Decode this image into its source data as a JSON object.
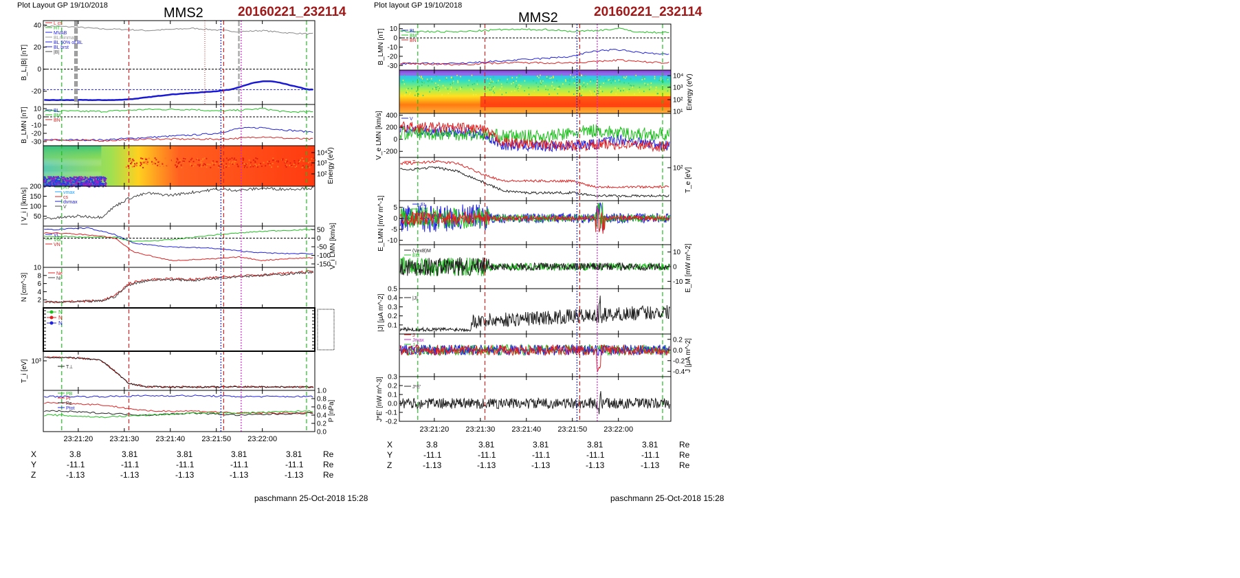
{
  "left": {
    "header": {
      "layout": "Plot Layout GP 19/10/2018",
      "title": "MMS2",
      "event": "20160221_232114"
    },
    "footer": "paschmann 25-Oct-2018 15:28",
    "time_ticks": [
      "23:21:20",
      "23:21:30",
      "23:21:40",
      "23:21:50",
      "23:22:00"
    ],
    "coords": {
      "rows": [
        {
          "label": "X",
          "values": [
            "3.8",
            "3.81",
            "3.81",
            "3.81",
            "3.81"
          ],
          "unit": "Re"
        },
        {
          "label": "Y",
          "values": [
            "-11.1",
            "-11.1",
            "-11.1",
            "-11.1",
            "-11.1"
          ],
          "unit": "Re"
        },
        {
          "label": "Z",
          "values": [
            "-1.13",
            "-1.13",
            "-1.13",
            "-1.13",
            "-1.13"
          ],
          "unit": "Re"
        }
      ]
    }
  },
  "right": {
    "header": {
      "layout": "Plot layout GP 19/10/2018",
      "title": "MMS2",
      "event": "20160221_232114"
    },
    "footer": "paschmann 25-Oct-2018 15:28",
    "time_ticks": [
      "23:21:20",
      "23:21:30",
      "23:21:40",
      "23:21:50",
      "23:22:00"
    ],
    "coords": {
      "rows": [
        {
          "label": "X",
          "values": [
            "3.8",
            "3.81",
            "3.81",
            "3.81",
            "3.81"
          ],
          "unit": "Re"
        },
        {
          "label": "Y",
          "values": [
            "-11.1",
            "-11.1",
            "-11.1",
            "-11.1",
            "-11.1"
          ],
          "unit": "Re"
        },
        {
          "label": "Z",
          "values": [
            "-1.13",
            "-1.13",
            "-1.13",
            "-1.13",
            "-1.13"
          ],
          "unit": "Re"
        }
      ]
    }
  },
  "colors": {
    "red": "#e02020",
    "green": "#20c020",
    "blue": "#2020e0",
    "magenta": "#d020d0",
    "gray": "#888888",
    "black": "#000000",
    "event": "#a01818"
  },
  "chart_data": [
    {
      "id": "left-1",
      "type": "line",
      "ylabel": "B_L,|B| [nT]",
      "ylim": [
        -32,
        44
      ],
      "yticks": [
        -20,
        0,
        20,
        40
      ],
      "legend": [
        "L cs",
        "HT",
        "MVAB",
        "BLminmax",
        "BL 50% of BL",
        "BL brst",
        "|B|"
      ],
      "series": [
        {
          "name": "|B|",
          "color": "#888888",
          "x": [
            15,
            20,
            25,
            30,
            35,
            40,
            45,
            50,
            55,
            60,
            65,
            70
          ],
          "y": [
            39,
            38,
            36.5,
            36,
            35,
            36,
            37,
            35.5,
            34,
            35,
            33,
            32
          ]
        },
        {
          "name": "BL brst",
          "color": "#1a1ad6",
          "x": [
            15,
            20,
            25,
            28,
            32,
            36,
            40,
            45,
            50,
            53,
            56,
            58,
            60,
            62,
            64,
            66,
            68,
            70
          ],
          "y": [
            -28,
            -28,
            -28,
            -28,
            -27,
            -25,
            -23,
            -21.5,
            -20,
            -18.5,
            -15,
            -12.5,
            -11,
            -11,
            -12.5,
            -14.5,
            -16.5,
            -18.5
          ]
        }
      ]
    },
    {
      "id": "left-2",
      "type": "line",
      "ylabel": "B_LMN [nT]",
      "ylim": [
        -35,
        15
      ],
      "yticks": [
        -30,
        -20,
        -10,
        0,
        10
      ],
      "legend": [
        "BL",
        "BM",
        "BN"
      ],
      "series": [
        {
          "name": "BL",
          "color": "#2020e0",
          "x": [
            15,
            25,
            35,
            45,
            50,
            55,
            60,
            65,
            70
          ],
          "y": [
            -28,
            -28,
            -25,
            -22,
            -20,
            -14,
            -13,
            -16,
            -18
          ]
        },
        {
          "name": "BM",
          "color": "#20c020",
          "x": [
            15,
            25,
            35,
            45,
            50,
            55,
            60,
            65,
            70
          ],
          "y": [
            7,
            6.5,
            9,
            9,
            7,
            8,
            10,
            6,
            6
          ]
        },
        {
          "name": "BN",
          "color": "#e02020",
          "x": [
            15,
            25,
            35,
            45,
            50,
            55,
            60,
            65,
            70
          ],
          "y": [
            -28,
            -29,
            -27,
            -27,
            -27,
            -26,
            -24,
            -26,
            -27
          ]
        }
      ]
    },
    {
      "id": "left-3",
      "type": "heatmap",
      "ylabel": "Energy (eV)",
      "ylim_exp": [
        1,
        4.4
      ],
      "yticks": [
        "10^2",
        "10^3",
        "10^4"
      ]
    },
    {
      "id": "left-4",
      "type": "line",
      "ylabel": "| V_i | [km/s]",
      "ylim": [
        0,
        200
      ],
      "yticks": [
        50,
        100,
        150,
        200
      ],
      "legend": [
        "HT",
        "vmax",
        "cs",
        "dvmax",
        "V"
      ],
      "series": [
        {
          "name": "V",
          "color": "#444444",
          "x": [
            15,
            20,
            25,
            28,
            31,
            35,
            40,
            45,
            50,
            55,
            60,
            65,
            70
          ],
          "y": [
            40,
            50,
            45,
            100,
            140,
            165,
            155,
            170,
            185,
            180,
            190,
            185,
            190
          ]
        }
      ]
    },
    {
      "id": "left-5",
      "type": "line",
      "ylabel": "V_i LMN [km/s]",
      "ylim": [
        -170,
        70
      ],
      "yticks": [
        50,
        0,
        -50,
        -100,
        -150
      ],
      "legend": [
        "VL",
        "VM",
        "VN"
      ],
      "series": [
        {
          "name": "VL",
          "color": "#2020e0",
          "x": [
            15,
            22,
            28,
            32,
            40,
            50,
            55,
            60,
            65,
            70
          ],
          "y": [
            50,
            60,
            20,
            -30,
            -50,
            -60,
            -75,
            -85,
            -90,
            -90
          ]
        },
        {
          "name": "VM",
          "color": "#20c020",
          "x": [
            15,
            22,
            28,
            32,
            40,
            50,
            55,
            60,
            65,
            70
          ],
          "y": [
            10,
            5,
            5,
            -20,
            -10,
            20,
            30,
            40,
            45,
            50
          ]
        },
        {
          "name": "VN",
          "color": "#e02020",
          "x": [
            15,
            22,
            28,
            32,
            40,
            50,
            55,
            60,
            65,
            70
          ],
          "y": [
            30,
            20,
            0,
            -80,
            -130,
            -120,
            -110,
            -130,
            -120,
            -115
          ]
        }
      ]
    },
    {
      "id": "left-6",
      "type": "line",
      "ylabel": "N [cm^-3]",
      "ylim": [
        0,
        10
      ],
      "yticks": [
        2,
        4,
        6,
        8,
        10
      ],
      "legend": [
        "Ne",
        "Ni"
      ],
      "series": [
        {
          "name": "Ne",
          "color": "#e02020",
          "x": [
            15,
            20,
            25,
            28,
            31,
            35,
            40,
            45,
            50,
            55,
            60,
            65,
            70
          ],
          "y": [
            1.5,
            1.6,
            1.8,
            3,
            6,
            7,
            7.2,
            7,
            7.5,
            8,
            8.2,
            8.5,
            9
          ]
        },
        {
          "name": "Ni",
          "color": "#444444",
          "x": [
            15,
            20,
            25,
            28,
            31,
            35,
            40,
            45,
            50,
            55,
            60,
            65,
            70
          ],
          "y": [
            1.4,
            1.5,
            1.7,
            2.8,
            5.7,
            6.8,
            7,
            6.8,
            7.3,
            7.8,
            8,
            8.3,
            8.8
          ]
        }
      ]
    },
    {
      "id": "left-7",
      "type": "line",
      "ylabel": "",
      "legend": [
        "N",
        "N",
        "N"
      ]
    },
    {
      "id": "left-8",
      "type": "line",
      "ylabel": "T_i [eV]",
      "yticks": [
        "10^3"
      ],
      "legend": [
        "T⊥"
      ],
      "series": [
        {
          "name": "T⊥",
          "color": "#222222",
          "x": [
            15,
            20,
            25,
            28,
            31,
            35,
            45,
            55,
            70
          ],
          "y": [
            1.0,
            0.98,
            0.9,
            0.55,
            0.15,
            0.05,
            0.04,
            0.05,
            0.04
          ]
        }
      ]
    },
    {
      "id": "left-9",
      "type": "line",
      "ylabel": "P [nPa]",
      "ylim": [
        0,
        1.0
      ],
      "yticks": [
        0.0,
        0.2,
        0.4,
        0.6,
        0.8,
        1.0
      ],
      "legend": [
        "PB",
        "Pi",
        "Pe",
        "Ptot"
      ],
      "series": [
        {
          "name": "PB",
          "color": "#2020e0",
          "x": [
            15,
            25,
            35,
            45,
            55,
            70
          ],
          "y": [
            0.85,
            0.85,
            0.87,
            0.87,
            0.85,
            0.85
          ]
        },
        {
          "name": "Pi",
          "color": "#e02020",
          "x": [
            15,
            25,
            35,
            45,
            55,
            70
          ],
          "y": [
            0.7,
            0.65,
            0.5,
            0.5,
            0.45,
            0.45
          ]
        },
        {
          "name": "Pe",
          "color": "#222222",
          "x": [
            15,
            25,
            35,
            45,
            55,
            70
          ],
          "y": [
            0.5,
            0.45,
            0.4,
            0.45,
            0.4,
            0.45
          ]
        },
        {
          "name": "Ptot",
          "color": "#20c020",
          "x": [
            15,
            25,
            35,
            45,
            55,
            70
          ],
          "y": [
            0.4,
            0.35,
            0.4,
            0.45,
            0.45,
            0.5
          ]
        }
      ]
    },
    {
      "id": "right-1",
      "type": "line",
      "ylabel": "B_LMN [nT]",
      "ylim": [
        -35,
        15
      ],
      "yticks": [
        -30,
        -20,
        -10,
        0,
        10
      ],
      "legend": [
        "BL",
        "BM",
        "BN"
      ],
      "series": [
        {
          "name": "BL",
          "color": "#2020e0",
          "x": [
            15,
            25,
            35,
            45,
            50,
            55,
            60,
            65,
            70
          ],
          "y": [
            -28,
            -28,
            -25,
            -22,
            -20,
            -14,
            -13,
            -16,
            -18
          ]
        },
        {
          "name": "BM",
          "color": "#20c020",
          "x": [
            15,
            25,
            35,
            45,
            50,
            55,
            60,
            65,
            70
          ],
          "y": [
            7,
            6.5,
            9,
            9,
            7,
            8,
            10,
            6,
            6
          ]
        },
        {
          "name": "BN",
          "color": "#e02020",
          "x": [
            15,
            25,
            35,
            45,
            50,
            55,
            60,
            65,
            70
          ],
          "y": [
            -28,
            -29,
            -27,
            -27,
            -27,
            -26,
            -24,
            -26,
            -27
          ]
        }
      ]
    },
    {
      "id": "right-2",
      "type": "heatmap",
      "ylabel": "Energy (eV)",
      "ylim_exp": [
        1,
        4.4
      ],
      "yticks": [
        "10^1",
        "10^2",
        "10^3",
        "10^4"
      ]
    },
    {
      "id": "right-3",
      "type": "line",
      "ylabel": "V_e LMN [km/s]",
      "ylim": [
        -300,
        430
      ],
      "yticks": [
        400,
        200,
        0,
        -200
      ],
      "legend": [
        "V"
      ],
      "series": [
        {
          "name": "VL",
          "color": "#2020e0",
          "x": [
            15,
            30,
            35,
            45,
            55,
            60,
            70
          ],
          "y": [
            150,
            100,
            -100,
            -120,
            -80,
            0,
            -100
          ]
        },
        {
          "name": "VM",
          "color": "#20c020",
          "x": [
            15,
            30,
            35,
            45,
            55,
            60,
            70
          ],
          "y": [
            100,
            80,
            50,
            50,
            150,
            100,
            80
          ]
        },
        {
          "name": "VN",
          "color": "#e02020",
          "x": [
            15,
            30,
            35,
            45,
            55,
            60,
            70
          ],
          "y": [
            200,
            180,
            -50,
            -100,
            -100,
            -80,
            -120
          ]
        }
      ]
    },
    {
      "id": "right-4",
      "type": "line",
      "ylabel": "T_e [eV]",
      "yticks": [
        "10^2"
      ],
      "legend": [
        "T"
      ],
      "series": [
        {
          "name": "T∥",
          "color": "#e02020",
          "x": [
            15,
            20,
            25,
            30,
            35,
            40,
            50,
            55,
            60,
            70
          ],
          "y": [
            0.9,
            0.95,
            0.9,
            0.65,
            0.45,
            0.45,
            0.45,
            0.3,
            0.3,
            0.3
          ]
        },
        {
          "name": "T⊥",
          "color": "#222222",
          "x": [
            15,
            20,
            25,
            30,
            35,
            40,
            50,
            55,
            60,
            70
          ],
          "y": [
            0.75,
            0.8,
            0.7,
            0.45,
            0.2,
            0.15,
            0.15,
            0.08,
            0.07,
            0.07
          ]
        }
      ]
    },
    {
      "id": "right-5",
      "type": "line",
      "ylabel": "E_LMN [mV m^-1]",
      "ylim": [
        -12,
        8
      ],
      "yticks": [
        5,
        0,
        -5,
        -10
      ],
      "legend": [
        "EL",
        "EM",
        "EN"
      ]
    },
    {
      "id": "right-6",
      "type": "line",
      "ylabel": "E_M [mW m^-2]",
      "ylim": [
        -15,
        15
      ],
      "yticks": [
        10,
        0,
        -10
      ],
      "legend": [
        "(VexB)M",
        "EM"
      ]
    },
    {
      "id": "right-7",
      "type": "line",
      "ylabel": "|J| [μA m^-2]",
      "ylim": [
        0,
        0.5
      ],
      "yticks": [
        0.1,
        0.2,
        0.3,
        0.4,
        0.5
      ],
      "legend": [
        "|J|"
      ]
    },
    {
      "id": "right-8",
      "type": "line",
      "ylabel": "J [μA m^-2]",
      "ylim": [
        -0.5,
        0.3
      ],
      "yticks": [
        0.2,
        0.0,
        -0.2,
        -0.4
      ],
      "legend": [
        "J",
        "Jmax",
        "J"
      ]
    },
    {
      "id": "right-9",
      "type": "line",
      "ylabel": "J*E' [nW m^-3]",
      "ylim": [
        -0.2,
        0.3
      ],
      "yticks": [
        0.3,
        0.2,
        0.1,
        0.0,
        -0.1,
        -0.2
      ],
      "legend": [
        "J*E'"
      ]
    }
  ]
}
